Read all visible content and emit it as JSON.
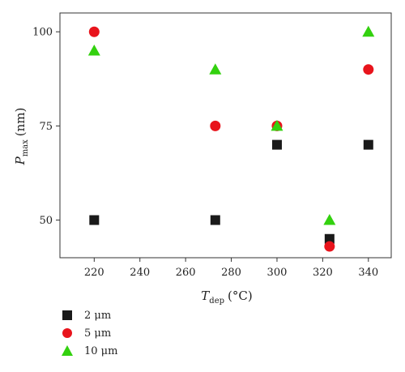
{
  "chart_data": {
    "type": "scatter",
    "xlabel_main": "T",
    "xlabel_sub": "dep",
    "xlabel_unit": "(°C)",
    "ylabel_main": "P",
    "ylabel_sub": "max",
    "ylabel_unit": "(nm)",
    "xlim": [
      205,
      350
    ],
    "ylim": [
      40,
      105
    ],
    "xticks": [
      220,
      240,
      260,
      280,
      300,
      320,
      340
    ],
    "yticks": [
      50,
      75,
      100
    ],
    "grid": false,
    "legend_position": "bottom-left, below plot",
    "series": [
      {
        "name": "2 μm",
        "marker": "square",
        "color": "#1a1a1a",
        "x": [
          220,
          273,
          300,
          323,
          340
        ],
        "y": [
          50,
          50,
          70,
          45,
          70
        ]
      },
      {
        "name": "5 μm",
        "marker": "circle",
        "color": "#e8141c",
        "x": [
          220,
          273,
          300,
          323,
          340
        ],
        "y": [
          100,
          75,
          75,
          43,
          90
        ]
      },
      {
        "name": "10 μm",
        "marker": "triangle",
        "color": "#33d10f",
        "x": [
          220,
          273,
          300,
          323,
          340
        ],
        "y": [
          95,
          90,
          75,
          50,
          100
        ]
      }
    ]
  }
}
